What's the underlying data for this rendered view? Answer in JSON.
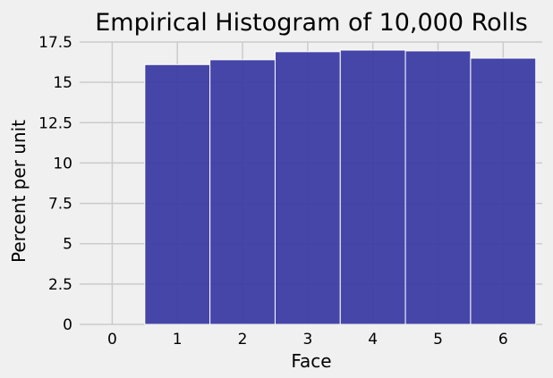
{
  "chart_data": {
    "type": "bar",
    "title": "Empirical Histogram of 10,000 Rolls",
    "xlabel": "Face",
    "ylabel": "Percent per unit",
    "bin_edges": [
      0.5,
      1.5,
      2.5,
      3.5,
      4.5,
      5.5,
      6.5
    ],
    "values": [
      16.1,
      16.4,
      16.9,
      17.0,
      16.95,
      16.5
    ],
    "xlim": [
      -0.5,
      6.6
    ],
    "ylim": [
      0,
      17.5
    ],
    "x_ticks": [
      0,
      1,
      2,
      3,
      4,
      5,
      6
    ],
    "x_tick_labels": [
      "0",
      "1",
      "2",
      "3",
      "4",
      "5",
      "6"
    ],
    "y_ticks": [
      0,
      2.5,
      5,
      7.5,
      10,
      12.5,
      15,
      17.5
    ],
    "y_tick_labels": [
      "0",
      "2.5",
      "5",
      "7.5",
      "10",
      "12.5",
      "15",
      "17.5"
    ],
    "bar_color": "#3c3ca3",
    "grid": true,
    "legend": "none"
  }
}
